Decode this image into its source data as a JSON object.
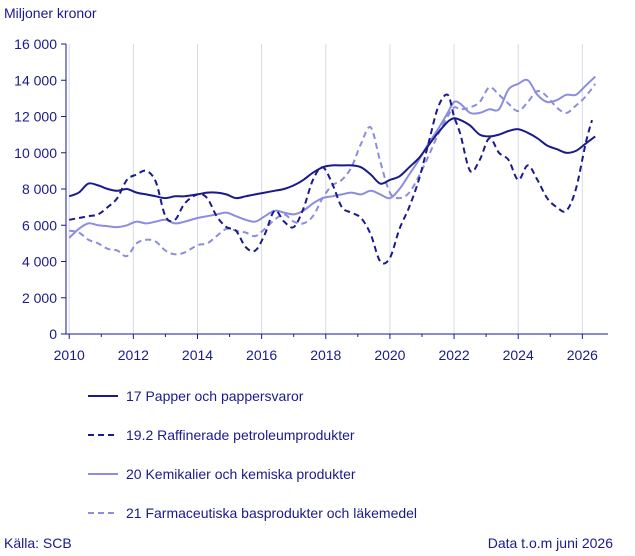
{
  "chart_data": {
    "type": "line",
    "title": "",
    "ylabel": "Miljoner kronor",
    "xlabel": "",
    "xlim": [
      2009.9,
      2026.8
    ],
    "ylim": [
      0,
      16000
    ],
    "x_ticks": [
      2010,
      2012,
      2014,
      2016,
      2018,
      2020,
      2022,
      2024,
      2026
    ],
    "y_ticks": [
      0,
      2000,
      4000,
      6000,
      8000,
      10000,
      12000,
      14000,
      16000
    ],
    "y_tick_labels": [
      "0",
      "2 000",
      "4 000",
      "6 000",
      "8 000",
      "10 000",
      "12 000",
      "14 000",
      "16 000"
    ],
    "grid": "vertical",
    "legend_position": "bottom",
    "series": [
      {
        "name": "17 Papper och pappersvaror",
        "color": "#1a1a8c",
        "style": "solid",
        "x": [
          2010,
          2010.3,
          2010.6,
          2010.9,
          2011.2,
          2011.5,
          2011.8,
          2012.1,
          2012.4,
          2012.7,
          2013.0,
          2013.3,
          2013.6,
          2014.0,
          2014.3,
          2014.6,
          2014.9,
          2015.2,
          2015.5,
          2015.8,
          2016.1,
          2016.4,
          2016.7,
          2017.0,
          2017.3,
          2017.6,
          2017.9,
          2018.2,
          2018.5,
          2018.8,
          2019.1,
          2019.4,
          2019.7,
          2020.0,
          2020.3,
          2020.6,
          2020.9,
          2021.2,
          2021.5,
          2021.8,
          2022.0,
          2022.2,
          2022.5,
          2022.8,
          2023.1,
          2023.4,
          2023.7,
          2024.0,
          2024.3,
          2024.6,
          2024.9,
          2025.2,
          2025.5,
          2025.8,
          2026.1,
          2026.4
        ],
        "y": [
          7600,
          7800,
          8300,
          8200,
          8000,
          7900,
          8000,
          7800,
          7700,
          7600,
          7500,
          7600,
          7600,
          7700,
          7800,
          7800,
          7700,
          7500,
          7600,
          7700,
          7800,
          7900,
          8000,
          8200,
          8500,
          8900,
          9200,
          9300,
          9300,
          9300,
          9200,
          8800,
          8300,
          8500,
          8700,
          9200,
          9700,
          10400,
          11100,
          11700,
          11900,
          11800,
          11500,
          11000,
          10900,
          11000,
          11200,
          11300,
          11100,
          10800,
          10400,
          10200,
          10000,
          10100,
          10500,
          10900
        ]
      },
      {
        "name": "19.2 Raffinerade petroleumprodukter",
        "color": "#1a1a8c",
        "style": "dashed",
        "x": [
          2010,
          2010.3,
          2010.6,
          2010.9,
          2011.2,
          2011.5,
          2011.8,
          2012.1,
          2012.4,
          2012.7,
          2013.0,
          2013.3,
          2013.6,
          2014.0,
          2014.3,
          2014.6,
          2014.9,
          2015.2,
          2015.5,
          2015.8,
          2016.1,
          2016.4,
          2016.7,
          2017.0,
          2017.3,
          2017.6,
          2017.9,
          2018.2,
          2018.5,
          2018.8,
          2019.1,
          2019.4,
          2019.7,
          2020.0,
          2020.3,
          2020.6,
          2020.9,
          2021.2,
          2021.5,
          2021.8,
          2022.0,
          2022.2,
          2022.5,
          2022.8,
          2023.1,
          2023.4,
          2023.7,
          2024.0,
          2024.3,
          2024.6,
          2024.9,
          2025.2,
          2025.5,
          2025.8,
          2026.1,
          2026.3
        ],
        "y": [
          6300,
          6400,
          6500,
          6600,
          7000,
          7500,
          8500,
          8800,
          9000,
          8400,
          6500,
          6300,
          7200,
          7700,
          7500,
          6500,
          5900,
          5700,
          4800,
          4600,
          5500,
          6800,
          6200,
          5900,
          6900,
          8500,
          9200,
          8300,
          7000,
          6700,
          6400,
          5500,
          4000,
          4200,
          5800,
          7000,
          8500,
          10500,
          12500,
          13200,
          12000,
          11000,
          9000,
          9600,
          10800,
          10000,
          9600,
          8500,
          9300,
          8500,
          7500,
          7000,
          6800,
          8000,
          10500,
          11800
        ]
      },
      {
        "name": "20 Kemikalier och kemiska produkter",
        "color": "#8c8ce0",
        "style": "solid",
        "x": [
          2010,
          2010.3,
          2010.6,
          2010.9,
          2011.2,
          2011.5,
          2011.8,
          2012.1,
          2012.4,
          2012.7,
          2013.0,
          2013.3,
          2013.6,
          2014.0,
          2014.3,
          2014.6,
          2014.9,
          2015.2,
          2015.5,
          2015.8,
          2016.1,
          2016.4,
          2016.7,
          2017.0,
          2017.3,
          2017.6,
          2017.9,
          2018.2,
          2018.5,
          2018.8,
          2019.1,
          2019.4,
          2019.7,
          2020.0,
          2020.3,
          2020.6,
          2020.9,
          2021.2,
          2021.5,
          2021.8,
          2022.0,
          2022.2,
          2022.5,
          2022.8,
          2023.1,
          2023.4,
          2023.7,
          2024.0,
          2024.3,
          2024.6,
          2024.9,
          2025.2,
          2025.5,
          2025.8,
          2026.1,
          2026.4
        ],
        "y": [
          5300,
          5800,
          6100,
          6000,
          5950,
          5900,
          6000,
          6200,
          6100,
          6200,
          6300,
          6100,
          6200,
          6400,
          6500,
          6600,
          6700,
          6500,
          6300,
          6200,
          6500,
          6800,
          6700,
          6600,
          6800,
          7200,
          7500,
          7600,
          7700,
          7800,
          7700,
          7900,
          7700,
          7500,
          8000,
          8800,
          9600,
          10500,
          11300,
          12200,
          12800,
          12700,
          12200,
          12200,
          12400,
          12400,
          13500,
          13800,
          14000,
          13200,
          12800,
          12900,
          13200,
          13200,
          13700,
          14200
        ]
      },
      {
        "name": "21 Farmaceutiska basprodukter och läkemedel",
        "color": "#8c8ce0",
        "style": "dashed",
        "x": [
          2010,
          2010.3,
          2010.6,
          2010.9,
          2011.2,
          2011.5,
          2011.8,
          2012.1,
          2012.4,
          2012.7,
          2013.0,
          2013.3,
          2013.6,
          2014.0,
          2014.3,
          2014.6,
          2014.9,
          2015.2,
          2015.5,
          2015.8,
          2016.1,
          2016.4,
          2016.7,
          2017.0,
          2017.3,
          2017.6,
          2017.9,
          2018.2,
          2018.5,
          2018.8,
          2019.1,
          2019.4,
          2019.7,
          2020.0,
          2020.3,
          2020.6,
          2020.9,
          2021.2,
          2021.5,
          2021.8,
          2022.0,
          2022.2,
          2022.5,
          2022.8,
          2023.1,
          2023.4,
          2023.7,
          2024.0,
          2024.3,
          2024.6,
          2024.9,
          2025.2,
          2025.5,
          2025.8,
          2026.1,
          2026.4
        ],
        "y": [
          5700,
          5600,
          5200,
          5000,
          4700,
          4600,
          4300,
          5000,
          5200,
          5100,
          4600,
          4400,
          4500,
          4900,
          5000,
          5400,
          5800,
          5700,
          5600,
          5400,
          5800,
          6300,
          6600,
          6200,
          6100,
          6500,
          7500,
          8200,
          8500,
          9200,
          10500,
          11400,
          9500,
          7800,
          7500,
          7800,
          8700,
          9800,
          11000,
          12000,
          12500,
          12400,
          12500,
          12800,
          13600,
          13200,
          12700,
          12300,
          12800,
          13400,
          13100,
          12500,
          12200,
          12600,
          13100,
          13800
        ]
      }
    ]
  },
  "source_text": "Källa: SCB",
  "note_text": "Data t.o.m juni 2026"
}
